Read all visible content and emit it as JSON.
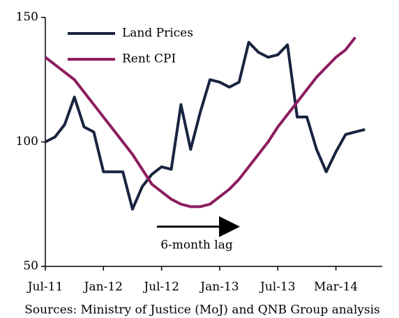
{
  "chart_data": {
    "type": "line",
    "x": [
      0,
      1,
      2,
      3,
      4,
      5,
      6,
      7,
      8,
      9,
      10,
      11,
      12,
      13,
      14,
      15,
      16,
      17,
      18,
      19,
      20,
      21,
      22,
      23,
      24,
      25,
      26,
      27,
      28,
      29,
      30,
      31,
      32,
      33
    ],
    "series": [
      {
        "name": "Land Prices",
        "color": "#18243f",
        "values": [
          100,
          102,
          107,
          118,
          106,
          104,
          88,
          88,
          88,
          73,
          82,
          87,
          90,
          89,
          115,
          97,
          112,
          125,
          124,
          122,
          124,
          140,
          136,
          134,
          135,
          139,
          110,
          110,
          97,
          88,
          96,
          103,
          104,
          105
        ]
      },
      {
        "name": "Rent CPI",
        "color": "#8c1d5e",
        "values": [
          134,
          131,
          128,
          125,
          120,
          115,
          110,
          105,
          100,
          95,
          89,
          83,
          80,
          77,
          75,
          74,
          74,
          75,
          78,
          81,
          85,
          90,
          95,
          100,
          106,
          111,
          116,
          121,
          126,
          130,
          134,
          137,
          142,
          null
        ]
      }
    ],
    "xlim": [
      0,
      35
    ],
    "xticks": [
      {
        "value": 0,
        "label": "Jul-11"
      },
      {
        "value": 6,
        "label": "Jan-12"
      },
      {
        "value": 12,
        "label": "Jul-12"
      },
      {
        "value": 18,
        "label": "Jan-13"
      },
      {
        "value": 24,
        "label": "Jul-13"
      },
      {
        "value": 30,
        "label": "Mar-14"
      }
    ],
    "ylim": [
      50,
      150
    ],
    "yticks": [
      50,
      100,
      150
    ],
    "grid": false,
    "legend": "upper left",
    "annotation": "6-month lag",
    "source": "Sources: Ministry of Justice (MoJ) and QNB Group analysis"
  }
}
